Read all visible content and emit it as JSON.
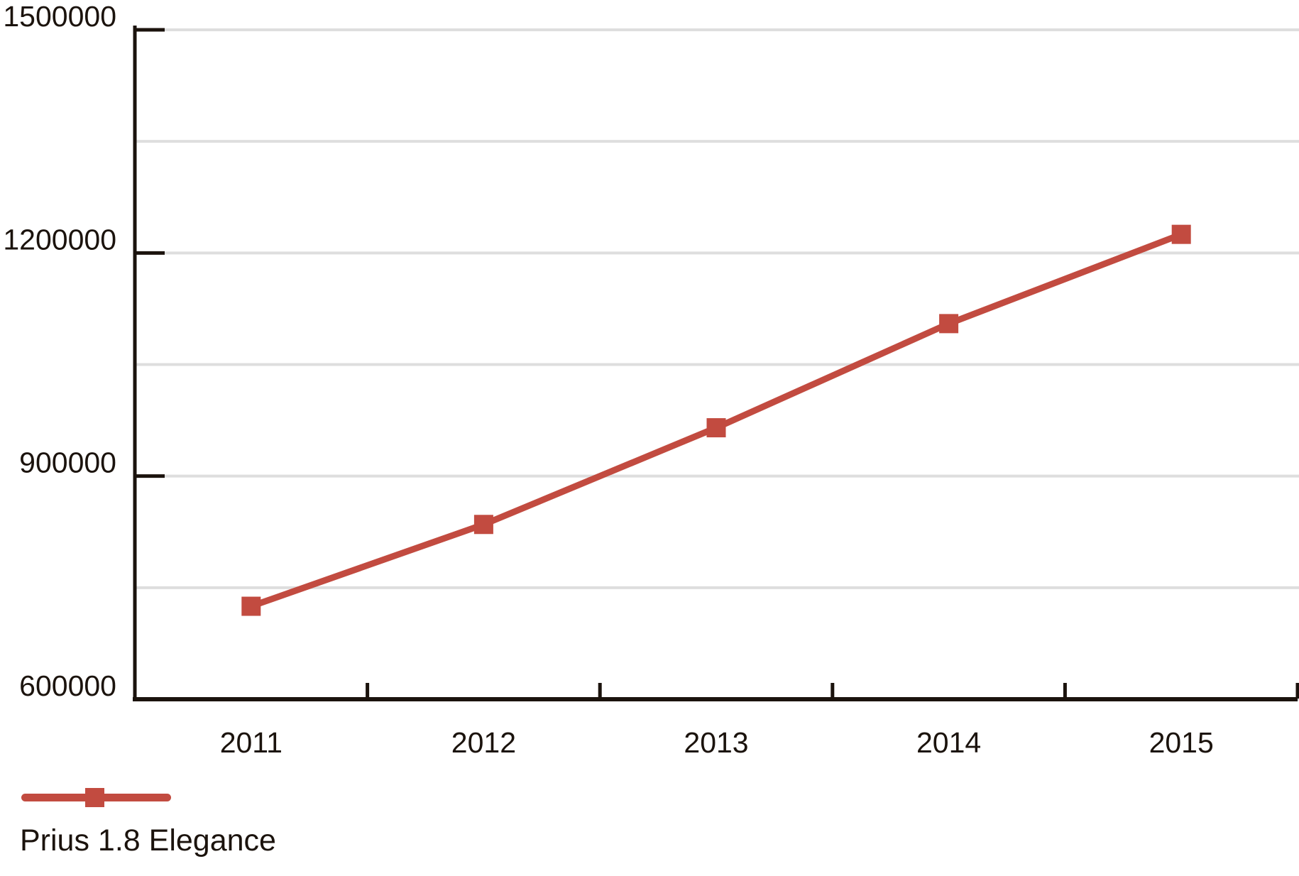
{
  "chart_data": {
    "type": "line",
    "title": "",
    "categories": [
      "2011",
      "2012",
      "2013",
      "2014",
      "2015"
    ],
    "series": [
      {
        "name": "Prius 1.8 Elegance",
        "values": [
          725000,
          835000,
          965000,
          1105000,
          1225000
        ],
        "color": "#c24b40",
        "marker": "square"
      }
    ],
    "ylim": [
      600000,
      1500000
    ],
    "y_ticks": [
      600000,
      900000,
      1200000,
      1500000
    ],
    "y_tick_labels": [
      "600000",
      "900000",
      "1200000",
      "1500000"
    ],
    "gridline_step": 150000,
    "grid": true,
    "number_format": "plain",
    "legend_position": "bottom-left",
    "colors": {
      "series": "#c24b40",
      "axis": "#1b130d",
      "gridline": "#dedede",
      "text": "#1b130d",
      "background": "#ffffff"
    }
  }
}
